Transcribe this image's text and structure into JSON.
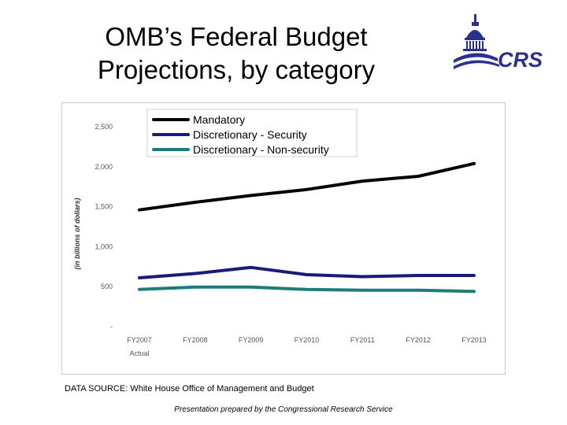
{
  "slide": {
    "title_line1": "OMB’s Federal Budget",
    "title_line2": "Projections, by category",
    "logo_text": "CRS",
    "source_note": "DATA SOURCE: White House Office of Management and Budget",
    "credit": "Presentation prepared by the Congressional Research Service"
  },
  "colors": {
    "logo": "#2b2f8f",
    "mandatory": "#000000",
    "security": "#1a1a7a",
    "nonsecurity": "#1f7a78",
    "axis_text": "#555555"
  },
  "chart_data": {
    "type": "line",
    "title": "",
    "xlabel": "",
    "xlabel_sub": "Actual",
    "ylabel": "(in billions of dollars)",
    "categories": [
      "FY2007",
      "FY2008",
      "FY2009",
      "FY2010",
      "FY2011",
      "FY2012",
      "FY2013"
    ],
    "y_ticks": [
      0,
      500,
      1000,
      1500,
      2000,
      2500
    ],
    "y_tick_labels": [
      "-",
      "500",
      "1,000",
      "1,500",
      "2,000",
      "2,500"
    ],
    "ylim": [
      0,
      2500
    ],
    "grid": false,
    "legend_position": "top-left",
    "series": [
      {
        "name": "Mandatory",
        "color": "#000000",
        "values": [
          1450,
          1545,
          1630,
          1705,
          1810,
          1870,
          2030
        ]
      },
      {
        "name": "Discretionary - Security",
        "color": "#1a1a7a",
        "values": [
          600,
          655,
          730,
          640,
          615,
          630,
          630
        ]
      },
      {
        "name": "Discretionary - Non-security",
        "color": "#1f7a78",
        "values": [
          455,
          485,
          485,
          455,
          445,
          445,
          430
        ]
      }
    ]
  }
}
